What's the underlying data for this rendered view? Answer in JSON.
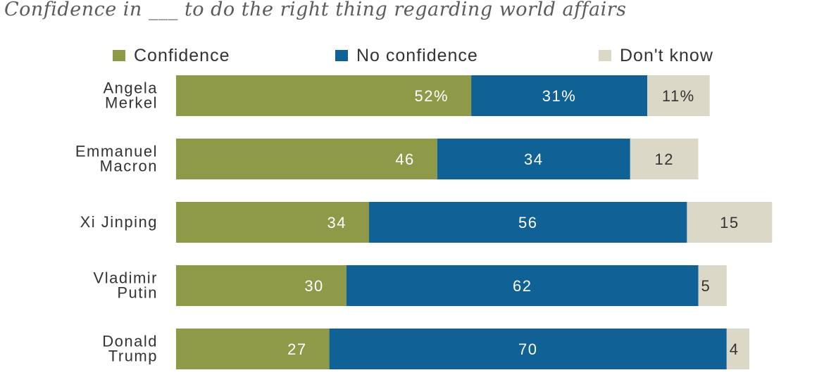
{
  "chart_data": {
    "type": "bar",
    "orientation": "horizontal",
    "stacked": true,
    "title": "Confidence in ___ to do the right thing regarding world affairs",
    "categories": [
      [
        "Angela",
        "Merkel"
      ],
      [
        "Emmanuel",
        "Macron"
      ],
      [
        "Xi Jinping"
      ],
      [
        "Vladimir",
        "Putin"
      ],
      [
        "Donald",
        "Trump"
      ]
    ],
    "series": [
      {
        "name": "Confidence",
        "color": "#8f9a48",
        "values": [
          52,
          46,
          34,
          30,
          27
        ]
      },
      {
        "name": "No confidence",
        "color": "#0f6196",
        "values": [
          31,
          34,
          56,
          62,
          70
        ]
      },
      {
        "name": "Don't know",
        "color": "#dcd8c8",
        "values": [
          11,
          12,
          15,
          5,
          4
        ]
      }
    ],
    "data_labels": [
      [
        "52%",
        "31%",
        "11%"
      ],
      [
        "46",
        "34",
        "12"
      ],
      [
        "34",
        "56",
        "15"
      ],
      [
        "30",
        "62",
        "5"
      ],
      [
        "27",
        "70",
        "4"
      ]
    ],
    "legend_position": "top",
    "grid": false
  }
}
